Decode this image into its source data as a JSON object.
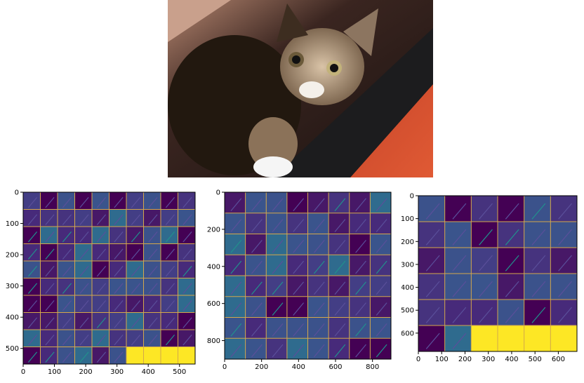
{
  "photo": {
    "subject": "tabby kitten photograph"
  },
  "colors": {
    "viridis_dark": "#440154",
    "viridis_mid": "#3b528b",
    "viridis_teal": "#21918c",
    "viridis_yellow": "#fde725",
    "grid_line": "#d4a84b"
  },
  "chart_data": [
    {
      "type": "heatmap",
      "title": "",
      "xlabel": "",
      "ylabel": "",
      "grid_tiles": [
        10,
        10
      ],
      "xlim": [
        0,
        550
      ],
      "ylim": [
        550,
        0
      ],
      "xticks": [
        "0",
        "100",
        "200",
        "300",
        "400",
        "500"
      ],
      "yticks": [
        "0",
        "100",
        "200",
        "300",
        "400",
        "500"
      ],
      "blank_tile_region": {
        "x_from": 330,
        "x_to": 550,
        "y_from": 495,
        "y_to": 550,
        "color": "#fde725"
      },
      "grid": true
    },
    {
      "type": "heatmap",
      "title": "",
      "xlabel": "",
      "ylabel": "",
      "grid_tiles": [
        8,
        8
      ],
      "xlim": [
        0,
        900
      ],
      "ylim": [
        900,
        0
      ],
      "xticks": [
        "0",
        "200",
        "400",
        "600",
        "800"
      ],
      "yticks": [
        "0",
        "200",
        "400",
        "600",
        "800"
      ],
      "grid": true
    },
    {
      "type": "heatmap",
      "title": "",
      "xlabel": "",
      "ylabel": "",
      "grid_tiles": [
        6,
        6
      ],
      "xlim": [
        0,
        680
      ],
      "ylim": [
        680,
        0
      ],
      "xticks": [
        "0",
        "100",
        "200",
        "300",
        "400",
        "500",
        "600"
      ],
      "yticks": [
        "0",
        "100",
        "200",
        "300",
        "400",
        "500",
        "600"
      ],
      "blank_tile_region": {
        "x_from": 226,
        "x_to": 680,
        "y_from": 565,
        "y_to": 680,
        "color": "#fde725"
      },
      "grid": true
    }
  ]
}
